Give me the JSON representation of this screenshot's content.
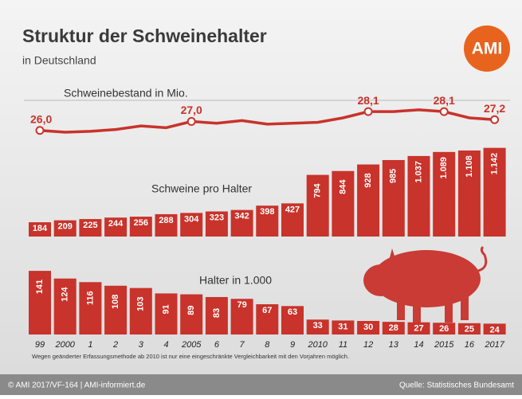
{
  "title": "Struktur der Schweinehalter",
  "subtitle": "in Deutschland",
  "logo": "AMI",
  "note": "Wegen geänderter Erfassungsmethode ab 2010 ist nur eine eingeschränkte Vergleichbarkeit mit den Vorjahren möglich.",
  "footer_left": "© AMI 2017/VF-164 | AMI-informiert.de",
  "footer_right": "Quelle: Statistisches Bundesamt",
  "chart_data": [
    {
      "type": "line",
      "title": "Schweinebestand in Mio.",
      "color": "#c8332b",
      "values": [
        26.0,
        25.8,
        25.9,
        26.1,
        26.5,
        26.3,
        27.0,
        26.8,
        27.1,
        26.7,
        26.8,
        26.9,
        27.4,
        28.1,
        28.1,
        28.3,
        28.1,
        27.4,
        27.2
      ],
      "value_labels": [
        "26,0",
        null,
        null,
        null,
        null,
        null,
        "27,0",
        null,
        null,
        null,
        null,
        null,
        null,
        "28,1",
        null,
        null,
        "28,1",
        null,
        "27,2"
      ],
      "ylim": [
        25,
        29
      ]
    },
    {
      "type": "bar",
      "title": "Schweine pro Halter",
      "color": "#c8332b",
      "values": [
        184,
        209,
        225,
        244,
        256,
        288,
        304,
        323,
        342,
        398,
        427,
        794,
        844,
        928,
        985,
        1037,
        1089,
        1108,
        1142
      ],
      "value_labels": [
        "184",
        "209",
        "225",
        "244",
        "256",
        "288",
        "304",
        "323",
        "342",
        "398",
        "427",
        "794",
        "844",
        "928",
        "985",
        "1.037",
        "1.089",
        "1.108",
        "1.142"
      ],
      "ylim": [
        0,
        1200
      ]
    },
    {
      "type": "bar",
      "title": "Halter in 1.000",
      "color": "#c8332b",
      "categories": [
        "99",
        "2000",
        "1",
        "2",
        "3",
        "4",
        "2005",
        "6",
        "7",
        "8",
        "9",
        "2010",
        "11",
        "12",
        "13",
        "14",
        "2015",
        "16",
        "2017"
      ],
      "values": [
        141,
        124,
        116,
        108,
        103,
        91,
        89,
        83,
        79,
        67,
        63,
        33,
        31,
        30,
        28,
        27,
        26,
        25,
        24
      ],
      "ylim": [
        0,
        150
      ]
    }
  ]
}
